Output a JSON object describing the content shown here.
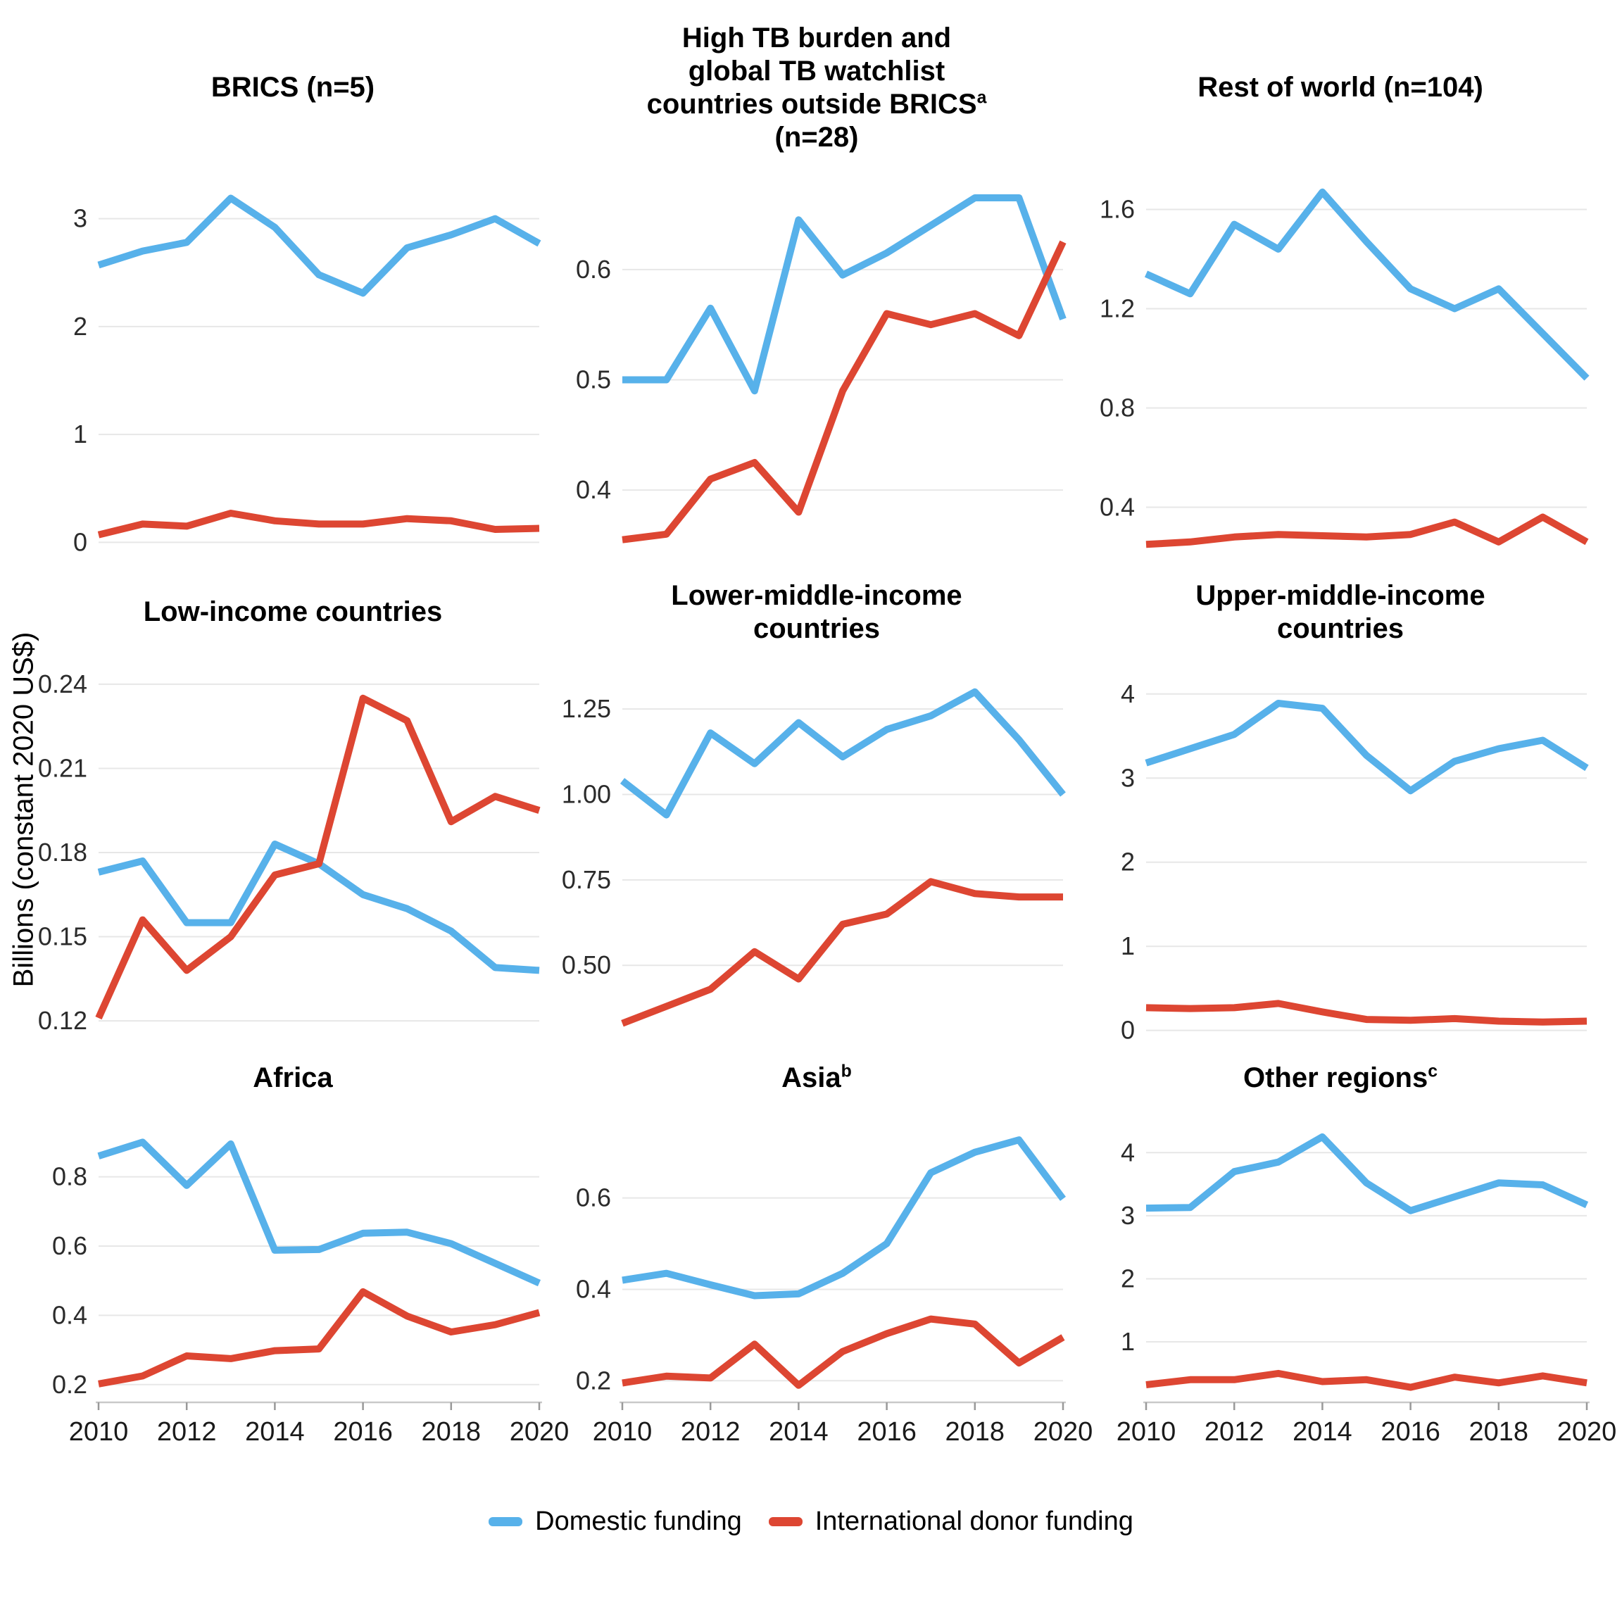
{
  "figure": {
    "y_axis_label": "Billions (constant 2020 US$)",
    "colors": {
      "domestic": "#57B1EA",
      "international": "#DD4632",
      "gridline": "#E7E7E7",
      "axis_line": "#C9C9C9",
      "tick_mark": "#999999"
    },
    "legend": [
      {
        "label": "Domestic funding",
        "color_key": "domestic"
      },
      {
        "label": "International donor funding",
        "color_key": "international"
      }
    ],
    "x_years": [
      2010,
      2011,
      2012,
      2013,
      2014,
      2015,
      2016,
      2017,
      2018,
      2019,
      2020
    ],
    "x_tick_years": [
      2010,
      2012,
      2014,
      2016,
      2018,
      2020
    ],
    "x_tick_labels": [
      "2010",
      "2012",
      "2014",
      "2016",
      "2018",
      "2020"
    ]
  },
  "chart_data": [
    {
      "type": "line",
      "title": "BRICS (n=5)",
      "title_lines": [
        {
          "text": "BRICS (n=5)",
          "sup": ""
        }
      ],
      "ylim": [
        -0.18,
        3.5
      ],
      "yticks": [
        0,
        1,
        2,
        3
      ],
      "ytick_labels": [
        "0",
        "1",
        "2",
        "3"
      ],
      "show_x_axis": false,
      "series": [
        {
          "name": "Domestic funding",
          "color_key": "domestic",
          "values": [
            2.57,
            2.7,
            2.78,
            3.19,
            2.92,
            2.48,
            2.31,
            2.73,
            2.85,
            3.0,
            2.77
          ]
        },
        {
          "name": "International donor funding",
          "color_key": "international",
          "values": [
            0.07,
            0.17,
            0.15,
            0.27,
            0.2,
            0.17,
            0.17,
            0.22,
            0.2,
            0.12,
            0.13
          ]
        }
      ]
    },
    {
      "type": "line",
      "title": "High TB burden and global TB watchlist countries outside BRICSa (n=28)",
      "title_lines": [
        {
          "text": "High TB burden and",
          "sup": ""
        },
        {
          "text": "global TB watchlist",
          "sup": ""
        },
        {
          "text": "countries outside BRICS",
          "sup": "a"
        },
        {
          "text": "(n=28)",
          "sup": ""
        }
      ],
      "ylim": [
        0.335,
        0.695
      ],
      "yticks": [
        0.4,
        0.5,
        0.6
      ],
      "ytick_labels": [
        "0.4",
        "0.5",
        "0.6"
      ],
      "show_x_axis": false,
      "series": [
        {
          "name": "Domestic funding",
          "color_key": "domestic",
          "values": [
            0.5,
            0.5,
            0.565,
            0.49,
            0.645,
            0.595,
            0.615,
            0.64,
            0.665,
            0.665,
            0.555
          ]
        },
        {
          "name": "International donor funding",
          "color_key": "international",
          "values": [
            0.355,
            0.36,
            0.41,
            0.425,
            0.38,
            0.49,
            0.56,
            0.55,
            0.56,
            0.54,
            0.625
          ]
        }
      ]
    },
    {
      "type": "line",
      "title": "Rest of world (n=104)",
      "title_lines": [
        {
          "text": "Rest of world (n=104)",
          "sup": ""
        }
      ],
      "ylim": [
        0.18,
        1.78
      ],
      "yticks": [
        0.4,
        0.8,
        1.2,
        1.6
      ],
      "ytick_labels": [
        "0.4",
        "0.8",
        "1.2",
        "1.6"
      ],
      "show_x_axis": false,
      "series": [
        {
          "name": "Domestic funding",
          "color_key": "domestic",
          "values": [
            1.34,
            1.26,
            1.54,
            1.44,
            1.67,
            1.47,
            1.28,
            1.2,
            1.28,
            1.1,
            0.92
          ]
        },
        {
          "name": "International donor funding",
          "color_key": "international",
          "values": [
            0.25,
            0.26,
            0.28,
            0.29,
            0.285,
            0.28,
            0.29,
            0.34,
            0.26,
            0.36,
            0.26
          ]
        }
      ]
    },
    {
      "type": "line",
      "title": "Low-income countries",
      "title_lines": [
        {
          "text": "Low-income countries",
          "sup": ""
        }
      ],
      "ylim": [
        0.113,
        0.247
      ],
      "yticks": [
        0.12,
        0.15,
        0.18,
        0.21,
        0.24
      ],
      "ytick_labels": [
        "0.12",
        "0.15",
        "0.18",
        "0.21",
        "0.24"
      ],
      "show_x_axis": false,
      "series": [
        {
          "name": "Domestic funding",
          "color_key": "domestic",
          "values": [
            0.173,
            0.177,
            0.155,
            0.155,
            0.183,
            0.176,
            0.165,
            0.16,
            0.152,
            0.139,
            0.138
          ]
        },
        {
          "name": "International donor funding",
          "color_key": "international",
          "values": [
            0.121,
            0.156,
            0.138,
            0.15,
            0.172,
            0.176,
            0.235,
            0.227,
            0.191,
            0.2,
            0.195
          ]
        }
      ]
    },
    {
      "type": "line",
      "title": "Lower-middle-income countries",
      "title_lines": [
        {
          "text": "Lower-middle-income",
          "sup": ""
        },
        {
          "text": "countries",
          "sup": ""
        }
      ],
      "ylim": [
        0.28,
        1.38
      ],
      "yticks": [
        0.5,
        0.75,
        1.0,
        1.25
      ],
      "ytick_labels": [
        "0.50",
        "0.75",
        "1.00",
        "1.25"
      ],
      "show_x_axis": false,
      "series": [
        {
          "name": "Domestic funding",
          "color_key": "domestic",
          "values": [
            1.04,
            0.94,
            1.18,
            1.09,
            1.21,
            1.11,
            1.19,
            1.23,
            1.3,
            1.16,
            1.0
          ]
        },
        {
          "name": "International donor funding",
          "color_key": "international",
          "values": [
            0.33,
            0.38,
            0.43,
            0.54,
            0.46,
            0.62,
            0.65,
            0.745,
            0.71,
            0.7,
            0.7
          ]
        }
      ]
    },
    {
      "type": "line",
      "title": "Upper-middle-income countries",
      "title_lines": [
        {
          "text": "Upper-middle-income",
          "sup": ""
        },
        {
          "text": "countries",
          "sup": ""
        }
      ],
      "ylim": [
        -0.12,
        4.35
      ],
      "yticks": [
        0,
        1,
        2,
        3,
        4
      ],
      "ytick_labels": [
        "0",
        "1",
        "2",
        "3",
        "4"
      ],
      "show_x_axis": false,
      "series": [
        {
          "name": "Domestic funding",
          "color_key": "domestic",
          "values": [
            3.18,
            3.35,
            3.52,
            3.89,
            3.83,
            3.27,
            2.85,
            3.2,
            3.35,
            3.45,
            3.12
          ]
        },
        {
          "name": "International donor funding",
          "color_key": "international",
          "values": [
            0.27,
            0.26,
            0.27,
            0.32,
            0.22,
            0.13,
            0.12,
            0.14,
            0.11,
            0.1,
            0.11
          ]
        }
      ]
    },
    {
      "type": "line",
      "title": "Africa",
      "title_lines": [
        {
          "text": "Africa",
          "sup": ""
        }
      ],
      "ylim": [
        0.165,
        0.97
      ],
      "yticks": [
        0.2,
        0.4,
        0.6,
        0.8
      ],
      "ytick_labels": [
        "0.2",
        "0.4",
        "0.6",
        "0.8"
      ],
      "show_x_axis": true,
      "series": [
        {
          "name": "Domestic funding",
          "color_key": "domestic",
          "values": [
            0.86,
            0.9,
            0.775,
            0.895,
            0.588,
            0.59,
            0.637,
            0.64,
            0.607,
            0.55,
            0.493
          ]
        },
        {
          "name": "International donor funding",
          "color_key": "international",
          "values": [
            0.202,
            0.225,
            0.283,
            0.275,
            0.298,
            0.303,
            0.468,
            0.398,
            0.352,
            0.373,
            0.408
          ]
        }
      ]
    },
    {
      "type": "line",
      "title": "Asiab",
      "title_lines": [
        {
          "text": "Asia",
          "sup": "b"
        }
      ],
      "ylim": [
        0.165,
        0.775
      ],
      "yticks": [
        0.2,
        0.4,
        0.6
      ],
      "ytick_labels": [
        "0.2",
        "0.4",
        "0.6"
      ],
      "show_x_axis": true,
      "series": [
        {
          "name": "Domestic funding",
          "color_key": "domestic",
          "values": [
            0.42,
            0.435,
            0.41,
            0.386,
            0.39,
            0.435,
            0.5,
            0.655,
            0.7,
            0.727,
            0.598
          ]
        },
        {
          "name": "International donor funding",
          "color_key": "international",
          "values": [
            0.195,
            0.21,
            0.206,
            0.28,
            0.19,
            0.264,
            0.303,
            0.335,
            0.324,
            0.239,
            0.295
          ]
        }
      ]
    },
    {
      "type": "line",
      "title": "Other regionsc",
      "title_lines": [
        {
          "text": "Other regions",
          "sup": "c"
        }
      ],
      "ylim": [
        0.13,
        4.55
      ],
      "yticks": [
        1,
        2,
        3,
        4
      ],
      "ytick_labels": [
        "1",
        "2",
        "3",
        "4"
      ],
      "show_x_axis": true,
      "series": [
        {
          "name": "Domestic funding",
          "color_key": "domestic",
          "values": [
            3.12,
            3.13,
            3.7,
            3.85,
            4.25,
            3.52,
            3.08,
            3.3,
            3.52,
            3.49,
            3.17
          ]
        },
        {
          "name": "International donor funding",
          "color_key": "international",
          "values": [
            0.32,
            0.4,
            0.4,
            0.5,
            0.37,
            0.4,
            0.28,
            0.44,
            0.35,
            0.46,
            0.35
          ]
        }
      ]
    }
  ]
}
